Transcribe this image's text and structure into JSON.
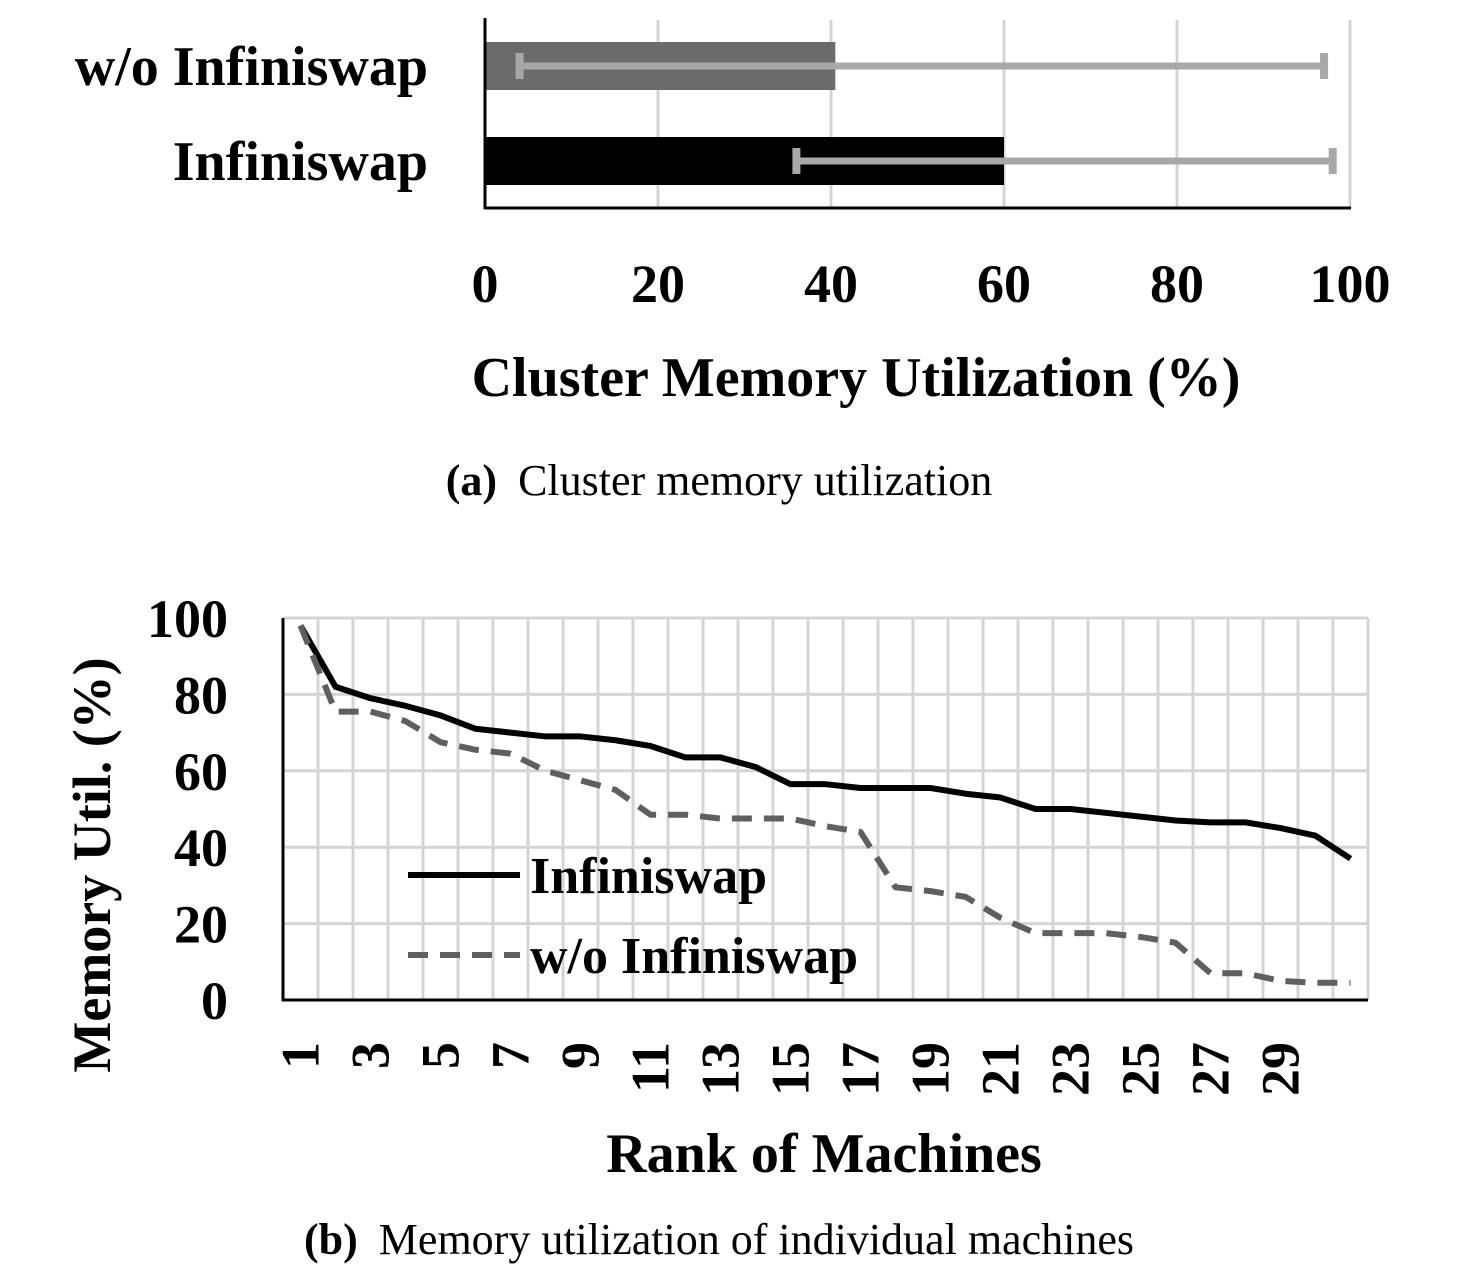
{
  "chart_data": [
    {
      "type": "bar",
      "orientation": "horizontal",
      "panel_label": "(a)",
      "caption": "Cluster memory utilization",
      "xlabel": "Cluster Memory Utilization (%)",
      "ylabel": "",
      "xlim": [
        0,
        100
      ],
      "xticks": [
        0,
        20,
        40,
        60,
        80,
        100
      ],
      "grid": true,
      "categories": [
        "w/o Infiniswap",
        "Infiniswap"
      ],
      "values": [
        40.5,
        60
      ],
      "error_low": [
        4,
        36
      ],
      "error_high": [
        97,
        98
      ],
      "colors": [
        "#6b6b6b",
        "#000000"
      ],
      "error_color": "#a8a8a8"
    },
    {
      "type": "line",
      "panel_label": "(b)",
      "caption": "Memory utilization of individual machines",
      "xlabel": "Rank of Machines",
      "ylabel": "Memory Util. (%)",
      "ylim": [
        0,
        100
      ],
      "yticks": [
        0,
        20,
        40,
        60,
        80,
        100
      ],
      "x": [
        1,
        2,
        3,
        4,
        5,
        6,
        7,
        8,
        9,
        10,
        11,
        12,
        13,
        14,
        15,
        16,
        17,
        18,
        19,
        20,
        21,
        22,
        23,
        24,
        25,
        26,
        27,
        28,
        29,
        30,
        31
      ],
      "xtick_labels": [
        "1",
        "3",
        "5",
        "7",
        "9",
        "11",
        "13",
        "15",
        "17",
        "19",
        "21",
        "23",
        "25",
        "27",
        "29"
      ],
      "grid": true,
      "legend_position": "lower-left",
      "series": [
        {
          "name": "Infiniswap",
          "style": "solid",
          "color": "#000000",
          "values": [
            98,
            82,
            79,
            77,
            74.5,
            71,
            70,
            69,
            69,
            68,
            66.5,
            63.5,
            63.5,
            61,
            56.5,
            56.5,
            55.5,
            55.5,
            55.5,
            54,
            53,
            50,
            50,
            49,
            48,
            47,
            46.5,
            46.5,
            45,
            43,
            37
          ]
        },
        {
          "name": "w/o Infiniswap",
          "style": "dashed",
          "color": "#5f5f5f",
          "values": [
            98,
            75.5,
            75.5,
            73,
            67.5,
            65.5,
            64.5,
            60,
            57.5,
            55,
            48.5,
            48.5,
            47.5,
            47.5,
            47.5,
            45.5,
            44,
            29.5,
            28.5,
            27,
            21.5,
            17.5,
            17.5,
            17.5,
            16.5,
            15,
            7,
            7,
            5,
            4.5,
            4.5
          ]
        }
      ]
    }
  ]
}
